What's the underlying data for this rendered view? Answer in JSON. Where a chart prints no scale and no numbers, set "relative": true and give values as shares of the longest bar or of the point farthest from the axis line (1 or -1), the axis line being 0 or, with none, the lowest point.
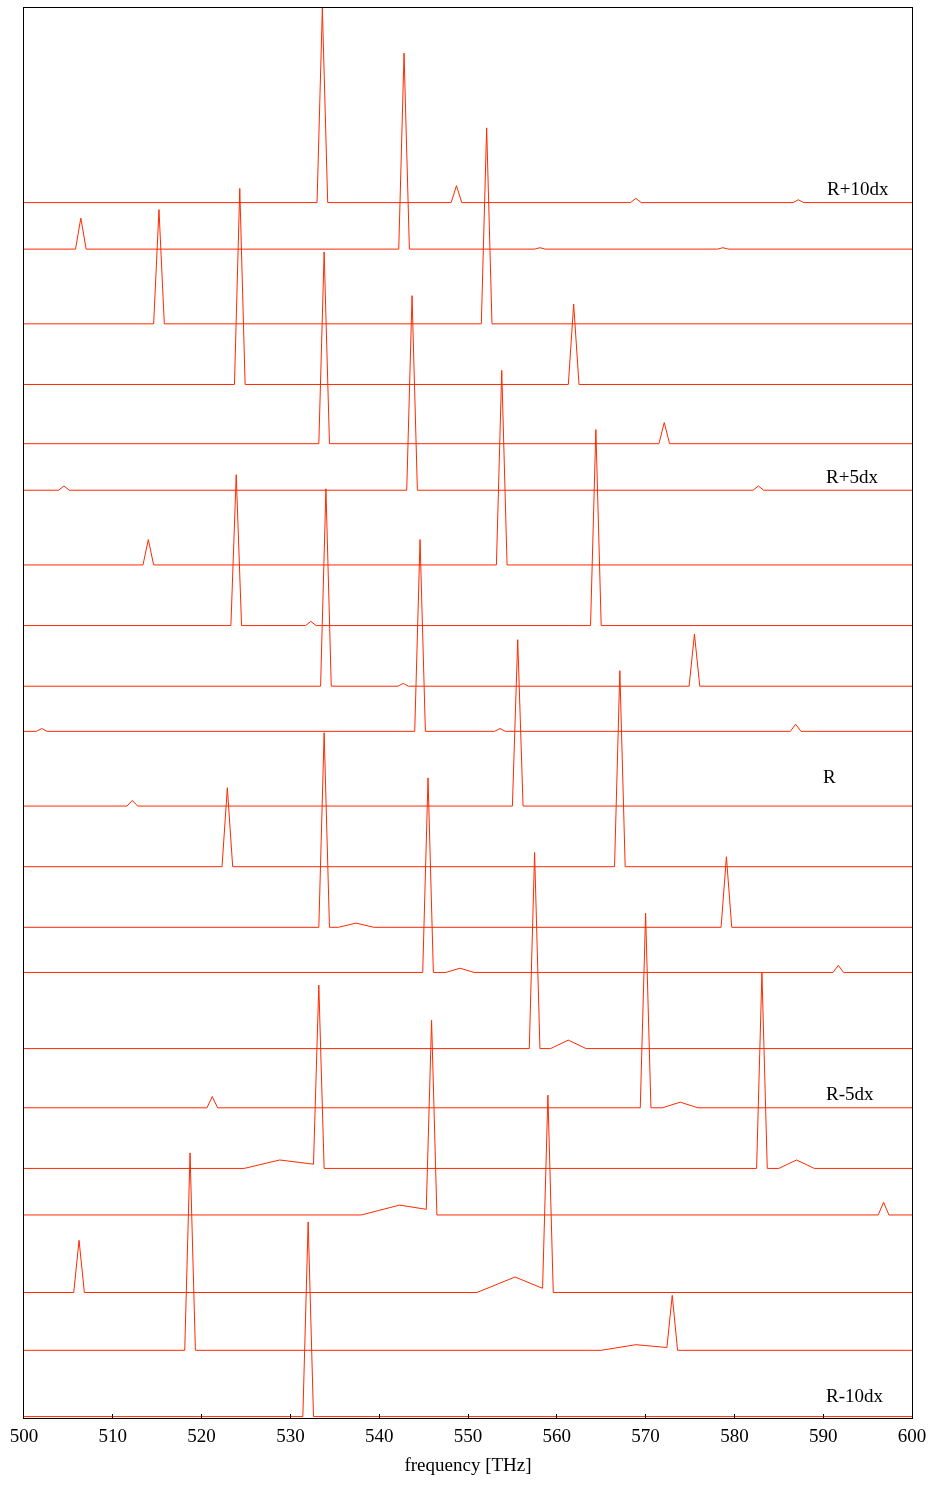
{
  "chart_data": {
    "type": "line",
    "relative": true,
    "xlabel": "frequency [THz]",
    "xlim": [
      500,
      600
    ],
    "xticks": [
      500,
      510,
      520,
      530,
      540,
      550,
      560,
      570,
      580,
      590,
      600
    ],
    "tick_labels": "x",
    "grid": false,
    "annotations": [
      "R+10dx",
      "R+5dx",
      "R",
      "R-5dx",
      "R-10dx"
    ],
    "series": [
      {
        "color": "#ff2a00",
        "x": [
          500,
          533.0,
          533.6,
          534.2,
          548.1,
          548.7,
          549.3,
          568.3,
          568.9,
          569.5,
          586.6,
          587.2,
          587.8,
          600
        ],
        "values": [
          0.862,
          0.862,
          1.0,
          0.862,
          0.862,
          0.874,
          0.862,
          0.862,
          0.865,
          0.862,
          0.862,
          0.864,
          0.862,
          0.862
        ]
      },
      {
        "color": "#ff2a00",
        "x": [
          500,
          505.8,
          506.4,
          507.0,
          542.2,
          542.8,
          543.4,
          557.5,
          558.1,
          558.7,
          578.1,
          578.7,
          579.3,
          600
        ],
        "values": [
          0.829,
          0.829,
          0.851,
          0.829,
          0.829,
          0.968,
          0.829,
          0.829,
          0.83,
          0.829,
          0.829,
          0.83,
          0.829,
          0.829
        ]
      },
      {
        "color": "#ff2a00",
        "x": [
          500,
          514.6,
          515.2,
          515.8,
          551.5,
          552.1,
          552.7,
          600
        ],
        "values": [
          0.776,
          0.776,
          0.857,
          0.776,
          0.776,
          0.915,
          0.776,
          0.776
        ]
      },
      {
        "color": "#ff2a00",
        "x": [
          500,
          523.7,
          524.3,
          524.9,
          561.3,
          561.9,
          562.5,
          600
        ],
        "values": [
          0.733,
          0.733,
          0.872,
          0.733,
          0.733,
          0.79,
          0.733,
          0.733
        ]
      },
      {
        "color": "#ff2a00",
        "x": [
          500,
          533.2,
          533.8,
          534.4,
          571.5,
          572.1,
          572.7,
          600
        ],
        "values": [
          0.691,
          0.691,
          0.827,
          0.691,
          0.691,
          0.706,
          0.691,
          0.691
        ]
      },
      {
        "color": "#ff2a00",
        "x": [
          500,
          503.9,
          504.5,
          505.1,
          543.1,
          543.7,
          544.3,
          582.1,
          582.7,
          583.3,
          600
        ],
        "values": [
          0.658,
          0.658,
          0.661,
          0.658,
          0.658,
          0.796,
          0.658,
          0.658,
          0.661,
          0.658,
          0.658
        ]
      },
      {
        "color": "#ff2a00",
        "x": [
          500,
          513.4,
          514.0,
          514.6,
          553.2,
          553.8,
          554.4,
          600
        ],
        "values": [
          0.605,
          0.605,
          0.623,
          0.605,
          0.605,
          0.743,
          0.605,
          0.605
        ]
      },
      {
        "color": "#ff2a00",
        "x": [
          500,
          523.3,
          523.9,
          524.5,
          531.7,
          532.3,
          532.9,
          563.8,
          564.4,
          565.0,
          600
        ],
        "values": [
          0.562,
          0.562,
          0.669,
          0.562,
          0.562,
          0.565,
          0.562,
          0.562,
          0.701,
          0.562,
          0.562
        ]
      },
      {
        "color": "#ff2a00",
        "x": [
          500,
          533.4,
          534.0,
          534.6,
          542.1,
          542.7,
          543.3,
          574.9,
          575.5,
          576.1,
          600
        ],
        "values": [
          0.519,
          0.519,
          0.659,
          0.519,
          0.519,
          0.521,
          0.519,
          0.519,
          0.556,
          0.519,
          0.519
        ]
      },
      {
        "color": "#ff2a00",
        "x": [
          500,
          501.4,
          502.0,
          502.6,
          544.0,
          544.6,
          545.2,
          553.0,
          553.6,
          554.2,
          586.3,
          586.9,
          587.5,
          600
        ],
        "values": [
          0.487,
          0.487,
          0.489,
          0.487,
          0.487,
          0.623,
          0.487,
          0.487,
          0.489,
          0.487,
          0.487,
          0.492,
          0.487,
          0.487
        ]
      },
      {
        "color": "#ff2a00",
        "x": [
          500,
          511.6,
          512.2,
          512.8,
          555.0,
          555.6,
          556.2,
          600
        ],
        "values": [
          0.434,
          0.434,
          0.438,
          0.434,
          0.434,
          0.552,
          0.434,
          0.434
        ]
      },
      {
        "color": "#ff2a00",
        "x": [
          500,
          522.3,
          522.9,
          523.5,
          566.5,
          567.1,
          567.7,
          600
        ],
        "values": [
          0.391,
          0.391,
          0.447,
          0.391,
          0.391,
          0.53,
          0.391,
          0.391
        ]
      },
      {
        "color": "#ff2a00",
        "x": [
          500,
          533.2,
          533.8,
          534.4,
          535.4,
          537.4,
          539.4,
          578.5,
          579.1,
          579.7,
          600
        ],
        "values": [
          0.348,
          0.348,
          0.486,
          0.348,
          0.348,
          0.351,
          0.348,
          0.348,
          0.398,
          0.348,
          0.348
        ]
      },
      {
        "color": "#ff2a00",
        "x": [
          500,
          544.9,
          545.5,
          546.1,
          547.5,
          549.1,
          550.7,
          591.1,
          591.7,
          592.3,
          600
        ],
        "values": [
          0.316,
          0.316,
          0.454,
          0.316,
          0.316,
          0.319,
          0.316,
          0.316,
          0.321,
          0.316,
          0.316
        ]
      },
      {
        "color": "#ff2a00",
        "x": [
          500,
          556.9,
          557.5,
          558.1,
          559.3,
          561.3,
          563.3,
          600
        ],
        "values": [
          0.262,
          0.262,
          0.401,
          0.262,
          0.262,
          0.268,
          0.262,
          0.262
        ]
      },
      {
        "color": "#ff2a00",
        "x": [
          500,
          520.6,
          521.2,
          521.8,
          569.4,
          570.0,
          570.6,
          571.9,
          573.9,
          575.9,
          600
        ],
        "values": [
          0.22,
          0.22,
          0.228,
          0.22,
          0.22,
          0.358,
          0.22,
          0.22,
          0.224,
          0.22,
          0.22
        ]
      },
      {
        "color": "#ff2a00",
        "x": [
          500,
          524.8,
          528.8,
          532.6,
          533.2,
          533.8,
          582.5,
          583.1,
          583.7,
          585.0,
          587.0,
          589.0,
          600
        ],
        "values": [
          0.177,
          0.177,
          0.183,
          0.18,
          0.307,
          0.177,
          0.177,
          0.316,
          0.177,
          0.177,
          0.183,
          0.177,
          0.177
        ]
      },
      {
        "color": "#ff2a00",
        "x": [
          500,
          538.0,
          542.3,
          545.3,
          545.9,
          546.5,
          596.2,
          596.8,
          597.4,
          600
        ],
        "values": [
          0.144,
          0.144,
          0.151,
          0.148,
          0.282,
          0.144,
          0.144,
          0.153,
          0.144,
          0.144
        ]
      },
      {
        "color": "#ff2a00",
        "x": [
          500,
          505.6,
          506.2,
          506.8,
          551.0,
          555.3,
          558.4,
          559.0,
          559.6,
          600
        ],
        "values": [
          0.089,
          0.089,
          0.126,
          0.089,
          0.089,
          0.1,
          0.092,
          0.229,
          0.089,
          0.089
        ]
      },
      {
        "color": "#ff2a00",
        "x": [
          500,
          518.1,
          518.7,
          519.3,
          565.0,
          568.9,
          572.4,
          573.0,
          573.6,
          600
        ],
        "values": [
          0.048,
          0.048,
          0.188,
          0.048,
          0.048,
          0.052,
          0.05,
          0.087,
          0.048,
          0.048
        ]
      },
      {
        "color": "#ff2a00",
        "x": [
          500,
          531.4,
          532.0,
          532.6,
          600
        ],
        "values": [
          0.001,
          0.001,
          0.139,
          0.001,
          0.001
        ]
      }
    ]
  }
}
